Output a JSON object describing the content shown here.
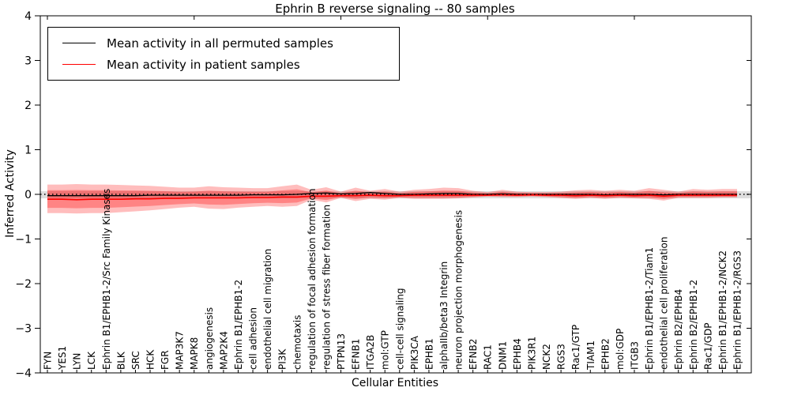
{
  "title": "Ephrin B reverse signaling -- 80 samples",
  "axes": {
    "xlabel": "Cellular Entities",
    "ylabel": "Inferred Activity",
    "yticks": [
      4,
      3,
      2,
      1,
      0,
      -1,
      -2,
      -3,
      -4
    ],
    "ylim": [
      -4,
      4
    ]
  },
  "legend": {
    "items": [
      {
        "label": "Mean activity in all permuted samples",
        "color": "#000000"
      },
      {
        "label": "Mean activity in patient samples",
        "color": "#ff0000"
      }
    ]
  },
  "colors": {
    "permuted_line": "#000000",
    "patient_line": "#ff0000",
    "patient_band": "rgba(255,0,0,0.26)",
    "patient_band_inner": "rgba(255,0,0,0.30)",
    "permuted_band": "rgba(0,0,0,0.13)",
    "zero_line": "#000000",
    "axis": "#000000"
  },
  "chart_data": {
    "type": "line",
    "title": "Ephrin B reverse signaling -- 80 samples",
    "xlabel": "Cellular Entities",
    "ylabel": "Inferred Activity",
    "ylim": [
      -4,
      4
    ],
    "grid": false,
    "legend_position": "upper left",
    "categories": [
      "FYN",
      "YES1",
      "LYN",
      "LCK",
      "Ephrin B1/EPHB1-2/Src Family Kinases",
      "BLK",
      "SRC",
      "HCK",
      "FGR",
      "MAP3K7",
      "MAPK8",
      "angiogenesis",
      "MAP2K4",
      "Ephrin B1/EPHB1-2",
      "cell adhesion",
      "endothelial cell migration",
      "PI3K",
      "chemotaxis",
      "regulation of focal adhesion formation",
      "regulation of stress fiber formation",
      "PTPN13",
      "EFNB1",
      "ITGA2B",
      "mol:GTP",
      "cell-cell signaling",
      "PIK3CA",
      "EPHB1",
      "alphaIIb/beta3 Integrin",
      "neuron projection morphogenesis",
      "EFNB2",
      "RAC1",
      "DNM1",
      "EPHB4",
      "PIK3R1",
      "NCK2",
      "RGS3",
      "Rac1/GTP",
      "TIAM1",
      "EPHB2",
      "mol:GDP",
      "ITGB3",
      "Ephrin B1/EPHB1-2/Tiam1",
      "endothelial cell proliferation",
      "Ephrin B2/EPHB4",
      "Ephrin B2/EPHB1-2",
      "Rac1/GDP",
      "Ephrin B1/EPHB1-2/NCK2",
      "Ephrin B1/EPHB1-2/RGS3"
    ],
    "series": [
      {
        "name": "Mean activity in all permuted samples",
        "values": [
          -0.03,
          -0.03,
          -0.03,
          -0.03,
          -0.03,
          -0.03,
          -0.03,
          -0.02,
          -0.02,
          -0.02,
          -0.02,
          -0.02,
          -0.02,
          -0.02,
          -0.01,
          -0.01,
          -0.01,
          0,
          0.02,
          0.03,
          0.01,
          0.02,
          0.04,
          0.02,
          0,
          0,
          0.01,
          0.02,
          0.02,
          0,
          0,
          0.01,
          0,
          0,
          0,
          0,
          0,
          0,
          -0.01,
          0,
          0,
          0,
          -0.01,
          0,
          0,
          0,
          0,
          0
        ]
      },
      {
        "name": "Mean activity in patient samples",
        "values": [
          -0.11,
          -0.11,
          -0.12,
          -0.11,
          -0.11,
          -0.11,
          -0.1,
          -0.1,
          -0.09,
          -0.09,
          -0.08,
          -0.08,
          -0.08,
          -0.08,
          -0.07,
          -0.07,
          -0.06,
          -0.06,
          -0.04,
          -0.04,
          -0.03,
          -0.03,
          -0.02,
          -0.03,
          -0.03,
          -0.02,
          -0.02,
          -0.02,
          -0.02,
          -0.02,
          -0.02,
          -0.01,
          -0.02,
          -0.01,
          -0.02,
          -0.02,
          -0.03,
          -0.02,
          -0.03,
          -0.02,
          -0.03,
          -0.02,
          -0.04,
          -0.02,
          -0.02,
          -0.02,
          -0.02,
          -0.02
        ]
      }
    ],
    "patient_band_top": [
      0.22,
      0.22,
      0.23,
      0.22,
      0.22,
      0.21,
      0.2,
      0.19,
      0.17,
      0.15,
      0.15,
      0.18,
      0.16,
      0.15,
      0.14,
      0.14,
      0.18,
      0.22,
      0.1,
      0.16,
      0.06,
      0.15,
      0.08,
      0.12,
      0.06,
      0.1,
      0.12,
      0.15,
      0.14,
      0.08,
      0.05,
      0.1,
      0.06,
      0.05,
      0.05,
      0.06,
      0.09,
      0.1,
      0.08,
      0.1,
      0.08,
      0.14,
      0.1,
      0.06,
      0.12,
      0.1,
      0.12,
      0.12
    ],
    "patient_band_bottom": [
      -0.42,
      -0.42,
      -0.43,
      -0.42,
      -0.42,
      -0.4,
      -0.38,
      -0.36,
      -0.33,
      -0.3,
      -0.28,
      -0.32,
      -0.33,
      -0.3,
      -0.28,
      -0.26,
      -0.28,
      -0.26,
      -0.12,
      -0.18,
      -0.08,
      -0.15,
      -0.1,
      -0.12,
      -0.08,
      -0.1,
      -0.1,
      -0.1,
      -0.09,
      -0.07,
      -0.05,
      -0.06,
      -0.06,
      -0.05,
      -0.06,
      -0.08,
      -0.1,
      -0.08,
      -0.1,
      -0.08,
      -0.09,
      -0.1,
      -0.14,
      -0.08,
      -0.08,
      -0.08,
      -0.07,
      -0.07
    ],
    "permuted_band": {
      "top": 0.07,
      "bottom": -0.09
    },
    "zero_reference_line": {
      "y": 0,
      "style": "dotted"
    }
  }
}
